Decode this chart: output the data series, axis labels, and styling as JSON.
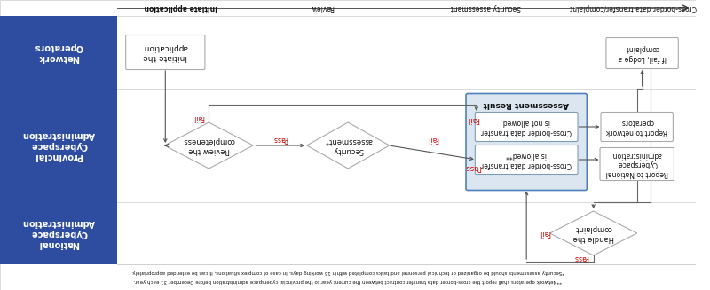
{
  "fig_width": 8.0,
  "fig_height": 3.27,
  "dpi": 100,
  "bg_color": "#ffffff",
  "dark_blue": "#2e4da0",
  "light_blue_fill": "#dce6f1",
  "light_blue_border": "#4f81bd",
  "white": "#ffffff",
  "red_text": "#cc0000",
  "dark_text": "#111111",
  "gray_line": "#999999",
  "box_edge": "#7f9db9",
  "lane_labels": [
    "Network\nOperators",
    "Provincial\nCyberspace\nAdministration",
    "National\nCyberspace\nAdministration"
  ],
  "phase_labels": [
    "Initiate application",
    "Review",
    "Security assessment",
    "Cross-border data transfer/complaint"
  ],
  "footnote1": "*Security assessments should be organized or technical personnel and tasks completed within 15 working days. In case of complex situations, it can be extended appropriately.",
  "footnote2": "**Network operators shall report the cross-border data transfer contract between the current year to the provincial cyberspace administration before December 31 each year."
}
